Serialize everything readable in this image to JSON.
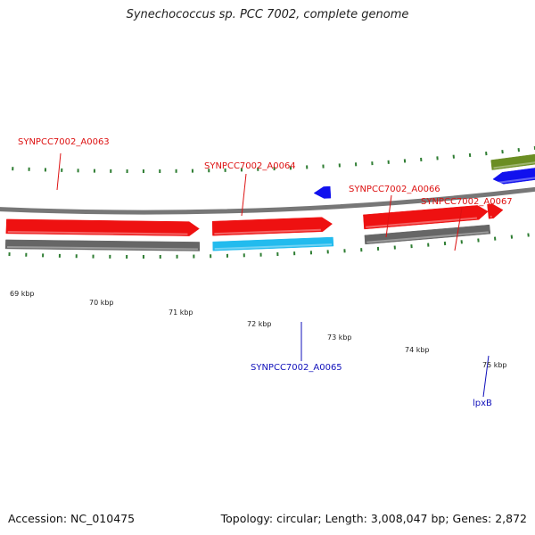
{
  "title": "Synechococcus sp. PCC 7002, complete genome",
  "footer": {
    "accession": "Accession: NC_010475",
    "summary": "Topology: circular; Length: 3,008,047 bp; Genes: 2,872"
  },
  "colors": {
    "background": "#ffffff",
    "backbone": "#777777",
    "tick": "#2e7d32",
    "gene_red": "#ee1111",
    "gene_gray": "#666666",
    "gene_cyan": "#22bbee",
    "gene_blue": "#1111ee",
    "gene_olive": "#6b8e23",
    "label_red": "#dd1111",
    "label_blue": "#1111bb"
  },
  "scale": {
    "unit": "kbp",
    "labels": [
      "69 kbp",
      "70 kbp",
      "71 kbp",
      "72 kbp",
      "73 kbp",
      "74 kbp",
      "75 kbp"
    ]
  },
  "genes": [
    {
      "id": "SYNPCC7002_A0063",
      "start_kbp": 68.45,
      "end_kbp": 70.77,
      "color": "gene_gray",
      "track": "outer2",
      "arrow": false
    },
    {
      "id": "SYNPCC7002_A0063_cds",
      "start_kbp": 68.45,
      "end_kbp": 70.77,
      "color": "gene_red",
      "track": "outer1",
      "arrow": true
    },
    {
      "id": "SYNPCC7002_A0064",
      "start_kbp": 70.93,
      "end_kbp": 72.37,
      "color": "gene_cyan",
      "track": "outer2",
      "arrow": false
    },
    {
      "id": "SYNPCC7002_A0064_cds",
      "start_kbp": 70.93,
      "end_kbp": 72.37,
      "color": "gene_red",
      "track": "outer1",
      "arrow": true
    },
    {
      "id": "SYNPCC7002_A0065",
      "start_kbp": 72.17,
      "end_kbp": 72.37,
      "color": "gene_blue",
      "track": "inner1",
      "arrow": true,
      "reverse": true
    },
    {
      "id": "SYNPCC7002_A0066",
      "start_kbp": 72.75,
      "end_kbp": 74.25,
      "color": "gene_gray",
      "track": "outer2",
      "arrow": false
    },
    {
      "id": "SYNPCC7002_A0066_cds",
      "start_kbp": 72.75,
      "end_kbp": 74.25,
      "color": "gene_red",
      "track": "outer1",
      "arrow": true
    },
    {
      "id": "SYNPCC7002_A0067",
      "start_kbp": 74.25,
      "end_kbp": 74.43,
      "color": "gene_red",
      "track": "outer1",
      "arrow": true
    },
    {
      "id": "lpxB_gray",
      "start_kbp": 74.35,
      "end_kbp": 76.5,
      "color": "gene_blue",
      "track": "inner1",
      "arrow": true,
      "reverse": true
    },
    {
      "id": "lpxB",
      "start_kbp": 74.35,
      "end_kbp": 76.5,
      "color": "gene_olive",
      "track": "inner2",
      "arrow": false
    }
  ],
  "gene_labels": [
    {
      "text": "SYNPCC7002_A0063",
      "color": "label_red"
    },
    {
      "text": "SYNPCC7002_A0064",
      "color": "label_red"
    },
    {
      "text": "SYNPCC7002_A0066",
      "color": "label_red"
    },
    {
      "text": "SYNPCC7002_A0067",
      "color": "label_red"
    },
    {
      "text": "SYNPCC7002_A0065",
      "color": "label_blue"
    },
    {
      "text": "lpxB",
      "color": "label_blue"
    }
  ]
}
